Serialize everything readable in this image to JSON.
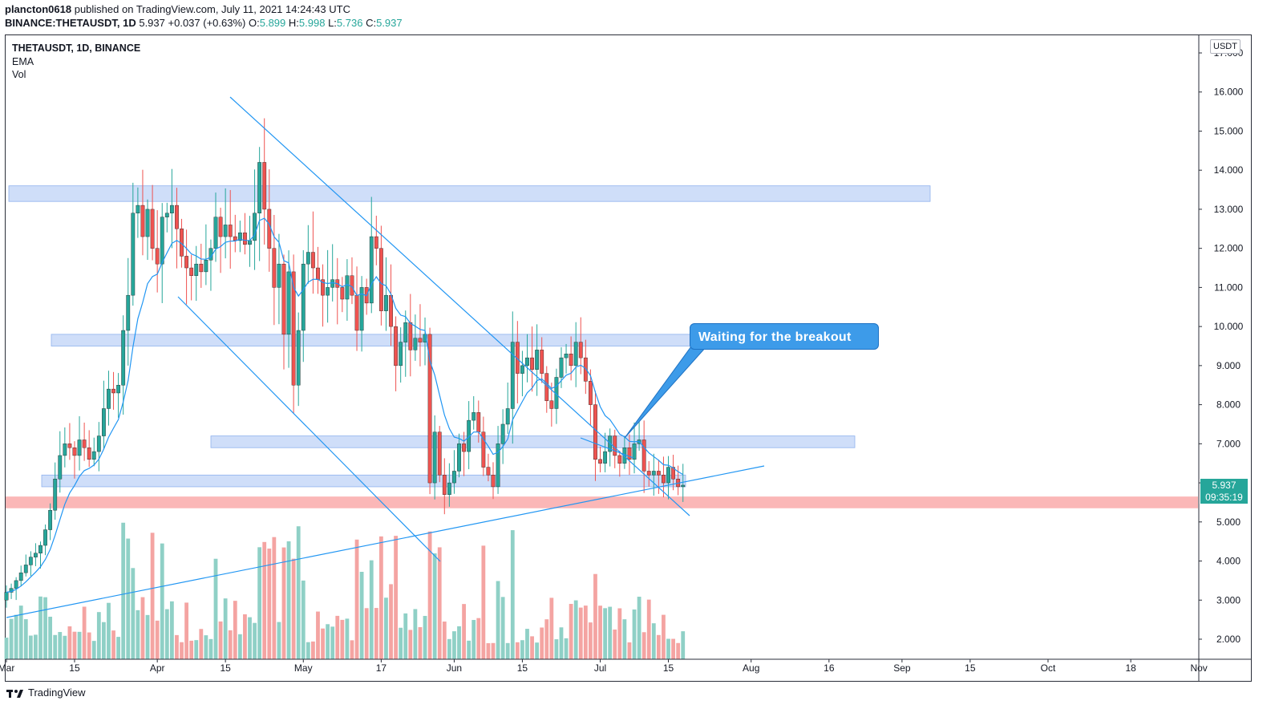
{
  "header": {
    "author": "plancton0618",
    "published_text": "published on TradingView.com, July 11, 2021 14:24:43 UTC",
    "symbol_line": "BINANCE:THETAUSDT, 1D",
    "last": "5.937",
    "change": "+0.037 (+0.63%)",
    "o_label": "O:",
    "o": "5.899",
    "h_label": "H:",
    "h": "5.998",
    "l_label": "L:",
    "l": "5.736",
    "c_label": "C:",
    "c": "5.937"
  },
  "legend": {
    "symbol": "THETAUSDT, 1D, BINANCE",
    "ema": "EMA",
    "vol": "Vol"
  },
  "price_axis": {
    "unit": "USDT",
    "last_price": "5.937",
    "countdown": "09:35:19"
  },
  "annotation": {
    "text": "Waiting for the breakout"
  },
  "footer": {
    "brand": "TradingView"
  },
  "colors": {
    "up": "#26a69a",
    "down": "#ef5350",
    "ema": "#2196f3",
    "zone": "#c7d8f8",
    "support": "#fbb7b7"
  },
  "chart_data": {
    "type": "candlestick",
    "title": "THETAUSDT, 1D, BINANCE",
    "indicators": [
      "EMA",
      "Vol"
    ],
    "ylim": [
      1.6,
      17.5
    ],
    "y_ticks": [
      "17.000",
      "16.000",
      "15.000",
      "14.000",
      "13.000",
      "12.000",
      "11.000",
      "10.000",
      "9.000",
      "8.000",
      "7.000",
      "6.000",
      "5.000",
      "4.000",
      "3.000",
      "2.000"
    ],
    "x_ticks": [
      "Mar",
      "15",
      "Apr",
      "15",
      "May",
      "17",
      "Jun",
      "15",
      "Jul",
      "15",
      "Aug",
      "16",
      "Sep",
      "15",
      "Oct",
      "18",
      "Nov"
    ],
    "x_tick_day_index": [
      0,
      14,
      31,
      45,
      61,
      77,
      92,
      106,
      122,
      136,
      153,
      169,
      184,
      198,
      214,
      231,
      245
    ],
    "series_start": "2021-03-01",
    "closes": [
      3.2,
      3.3,
      3.5,
      3.7,
      3.9,
      4.1,
      4.2,
      4.4,
      4.8,
      5.3,
      6.1,
      6.7,
      7.0,
      6.9,
      6.7,
      7.1,
      6.9,
      6.6,
      6.8,
      7.2,
      7.9,
      8.4,
      8.3,
      8.5,
      9.9,
      10.8,
      12.9,
      13.1,
      12.3,
      13.0,
      12.0,
      11.6,
      12.8,
      12.9,
      13.1,
      12.5,
      11.8,
      11.5,
      11.3,
      11.6,
      11.4,
      11.7,
      12.0,
      12.8,
      12.3,
      12.6,
      12.3,
      12.2,
      12.4,
      12.1,
      12.2,
      12.9,
      14.2,
      13.0,
      12.0,
      11.0,
      11.6,
      9.8,
      11.4,
      8.5,
      9.9,
      11.6,
      11.9,
      11.5,
      11.2,
      10.8,
      11.0,
      11.2,
      11.0,
      10.7,
      11.3,
      10.8,
      9.9,
      11.0,
      10.6,
      12.3,
      12.0,
      10.4,
      10.8,
      10.0,
      9.0,
      9.6,
      10.1,
      9.4,
      9.7,
      9.6,
      9.8,
      6.0,
      7.3,
      6.2,
      5.7,
      6.0,
      6.3,
      7.0,
      6.8,
      7.6,
      7.8,
      7.3,
      6.4,
      6.2,
      5.9,
      7.0,
      7.5,
      7.9,
      9.6,
      8.8,
      9.0,
      9.2,
      8.9,
      9.4,
      8.8,
      8.1,
      7.9,
      8.7,
      9.2,
      9.3,
      9.0,
      9.6,
      9.2,
      8.6,
      8.0,
      6.6,
      6.5,
      6.8,
      7.2,
      6.7,
      6.5,
      6.9,
      6.6,
      7.0,
      7.1,
      6.3,
      6.2,
      6.3,
      6.2,
      6.0,
      6.4,
      6.1,
      5.9,
      5.94
    ],
    "ema_last": 6.3,
    "zones": [
      {
        "name": "resistance-zone",
        "low": 13.2,
        "high": 13.6
      },
      {
        "name": "mid-zone",
        "low": 9.5,
        "high": 9.8
      },
      {
        "name": "breakout-zone",
        "low": 6.9,
        "high": 7.2
      },
      {
        "name": "lower-zone",
        "low": 5.9,
        "high": 6.2
      },
      {
        "name": "support-zone",
        "low": 5.35,
        "high": 5.65
      }
    ],
    "annotation": "Waiting for the breakout"
  }
}
